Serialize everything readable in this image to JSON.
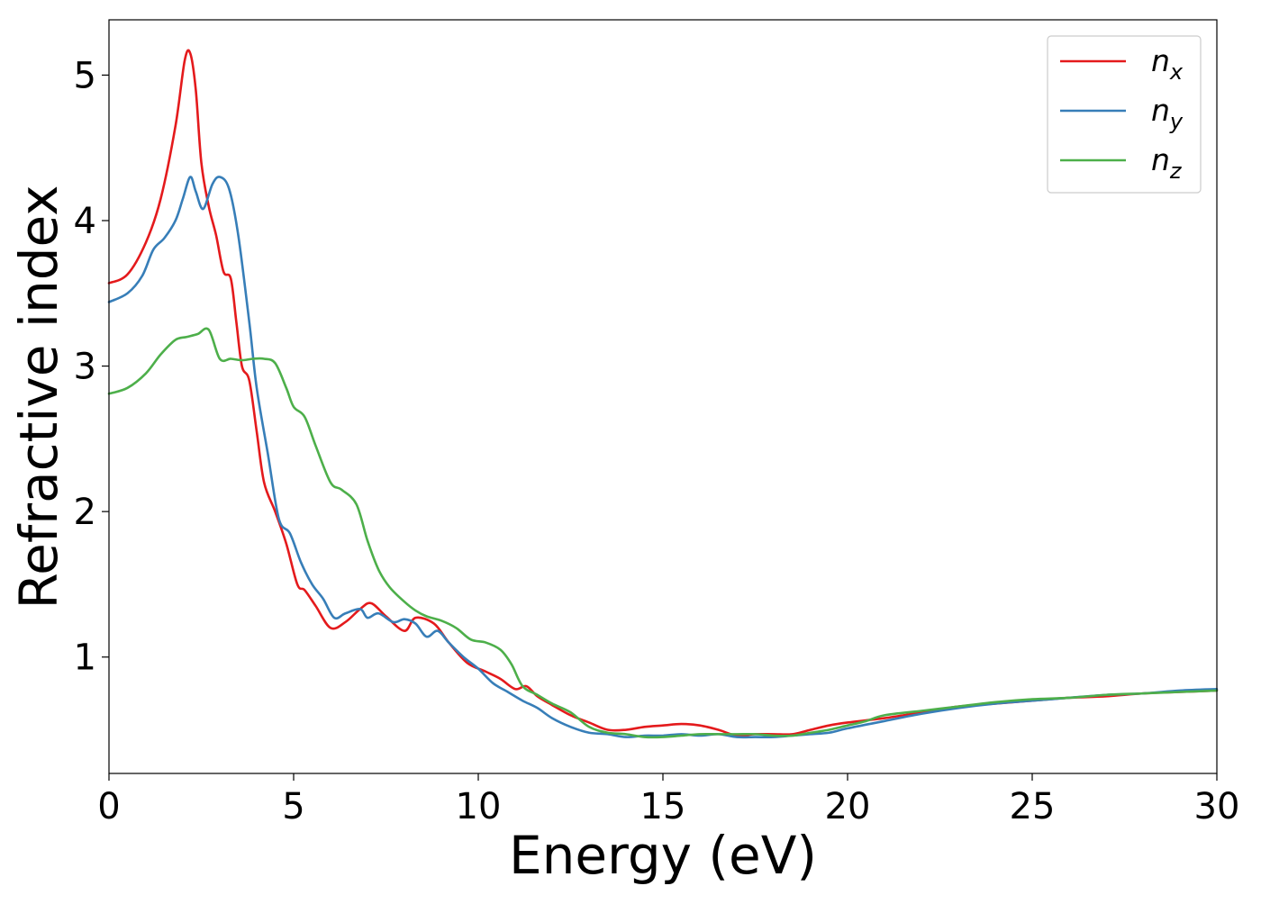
{
  "chart_data": {
    "type": "line",
    "xlabel": "Energy (eV)",
    "ylabel": "Refractive index",
    "xlim": [
      0,
      30
    ],
    "ylim": [
      0.2,
      5.38
    ],
    "xticks": [
      0,
      5,
      10,
      15,
      20,
      25,
      30
    ],
    "yticks": [
      1,
      2,
      3,
      4,
      5
    ],
    "grid": false,
    "legend_position": "top-right",
    "series": [
      {
        "name": "n",
        "subscript": "x",
        "color": "#e41a1c",
        "points": [
          [
            0,
            3.57
          ],
          [
            0.5,
            3.63
          ],
          [
            1.0,
            3.85
          ],
          [
            1.4,
            4.15
          ],
          [
            1.8,
            4.65
          ],
          [
            2.05,
            5.1
          ],
          [
            2.2,
            5.15
          ],
          [
            2.35,
            4.9
          ],
          [
            2.5,
            4.4
          ],
          [
            2.7,
            4.1
          ],
          [
            2.9,
            3.9
          ],
          [
            3.1,
            3.65
          ],
          [
            3.3,
            3.6
          ],
          [
            3.45,
            3.3
          ],
          [
            3.6,
            3.0
          ],
          [
            3.8,
            2.9
          ],
          [
            4.0,
            2.55
          ],
          [
            4.2,
            2.2
          ],
          [
            4.5,
            2.0
          ],
          [
            4.8,
            1.78
          ],
          [
            5.1,
            1.5
          ],
          [
            5.3,
            1.46
          ],
          [
            5.6,
            1.35
          ],
          [
            6.0,
            1.2
          ],
          [
            6.4,
            1.24
          ],
          [
            6.8,
            1.33
          ],
          [
            7.1,
            1.37
          ],
          [
            7.5,
            1.28
          ],
          [
            8.0,
            1.18
          ],
          [
            8.3,
            1.27
          ],
          [
            8.8,
            1.23
          ],
          [
            9.2,
            1.1
          ],
          [
            9.7,
            0.96
          ],
          [
            10.2,
            0.9
          ],
          [
            10.6,
            0.85
          ],
          [
            11.0,
            0.78
          ],
          [
            11.3,
            0.8
          ],
          [
            11.6,
            0.73
          ],
          [
            12.0,
            0.67
          ],
          [
            12.5,
            0.6
          ],
          [
            13.0,
            0.55
          ],
          [
            13.5,
            0.5
          ],
          [
            14.0,
            0.5
          ],
          [
            14.5,
            0.52
          ],
          [
            15.0,
            0.53
          ],
          [
            15.5,
            0.54
          ],
          [
            16.0,
            0.53
          ],
          [
            16.5,
            0.5
          ],
          [
            17.0,
            0.46
          ],
          [
            17.5,
            0.47
          ],
          [
            18.0,
            0.47
          ],
          [
            18.5,
            0.47
          ],
          [
            19.0,
            0.5
          ],
          [
            19.5,
            0.53
          ],
          [
            20.0,
            0.55
          ],
          [
            21.0,
            0.58
          ],
          [
            22.0,
            0.62
          ],
          [
            23.0,
            0.66
          ],
          [
            24.0,
            0.68
          ],
          [
            25.0,
            0.7
          ],
          [
            26.0,
            0.72
          ],
          [
            27.0,
            0.73
          ],
          [
            28.0,
            0.75
          ],
          [
            29.0,
            0.76
          ],
          [
            30.0,
            0.77
          ]
        ]
      },
      {
        "name": "n",
        "subscript": "y",
        "color": "#377eb8",
        "points": [
          [
            0,
            3.44
          ],
          [
            0.5,
            3.5
          ],
          [
            0.9,
            3.62
          ],
          [
            1.2,
            3.8
          ],
          [
            1.5,
            3.88
          ],
          [
            1.8,
            4.0
          ],
          [
            2.0,
            4.15
          ],
          [
            2.2,
            4.3
          ],
          [
            2.35,
            4.2
          ],
          [
            2.55,
            4.08
          ],
          [
            2.8,
            4.25
          ],
          [
            3.0,
            4.3
          ],
          [
            3.25,
            4.22
          ],
          [
            3.5,
            3.9
          ],
          [
            3.8,
            3.3
          ],
          [
            4.0,
            2.85
          ],
          [
            4.3,
            2.4
          ],
          [
            4.6,
            1.95
          ],
          [
            4.9,
            1.85
          ],
          [
            5.2,
            1.65
          ],
          [
            5.5,
            1.5
          ],
          [
            5.8,
            1.4
          ],
          [
            6.1,
            1.27
          ],
          [
            6.4,
            1.3
          ],
          [
            6.8,
            1.33
          ],
          [
            7.0,
            1.27
          ],
          [
            7.3,
            1.3
          ],
          [
            7.7,
            1.24
          ],
          [
            8.0,
            1.26
          ],
          [
            8.3,
            1.23
          ],
          [
            8.6,
            1.14
          ],
          [
            8.9,
            1.18
          ],
          [
            9.2,
            1.1
          ],
          [
            9.6,
            1.0
          ],
          [
            10.0,
            0.92
          ],
          [
            10.4,
            0.82
          ],
          [
            10.8,
            0.76
          ],
          [
            11.2,
            0.7
          ],
          [
            11.6,
            0.65
          ],
          [
            12.0,
            0.58
          ],
          [
            12.5,
            0.52
          ],
          [
            13.0,
            0.48
          ],
          [
            13.5,
            0.47
          ],
          [
            14.0,
            0.45
          ],
          [
            14.5,
            0.46
          ],
          [
            15.0,
            0.46
          ],
          [
            15.5,
            0.47
          ],
          [
            16.0,
            0.46
          ],
          [
            16.5,
            0.47
          ],
          [
            17.0,
            0.45
          ],
          [
            17.5,
            0.45
          ],
          [
            18.0,
            0.45
          ],
          [
            18.5,
            0.46
          ],
          [
            19.0,
            0.47
          ],
          [
            19.5,
            0.48
          ],
          [
            20.0,
            0.51
          ],
          [
            21.0,
            0.56
          ],
          [
            22.0,
            0.61
          ],
          [
            23.0,
            0.65
          ],
          [
            24.0,
            0.68
          ],
          [
            25.0,
            0.7
          ],
          [
            26.0,
            0.72
          ],
          [
            27.0,
            0.74
          ],
          [
            28.0,
            0.75
          ],
          [
            29.0,
            0.77
          ],
          [
            30.0,
            0.78
          ]
        ]
      },
      {
        "name": "n",
        "subscript": "z",
        "color": "#4daf4a",
        "points": [
          [
            0,
            2.81
          ],
          [
            0.5,
            2.85
          ],
          [
            1.0,
            2.95
          ],
          [
            1.4,
            3.08
          ],
          [
            1.8,
            3.18
          ],
          [
            2.1,
            3.2
          ],
          [
            2.4,
            3.22
          ],
          [
            2.7,
            3.25
          ],
          [
            3.0,
            3.05
          ],
          [
            3.3,
            3.05
          ],
          [
            3.6,
            3.04
          ],
          [
            3.9,
            3.05
          ],
          [
            4.2,
            3.05
          ],
          [
            4.5,
            3.02
          ],
          [
            4.8,
            2.85
          ],
          [
            5.0,
            2.72
          ],
          [
            5.3,
            2.65
          ],
          [
            5.6,
            2.45
          ],
          [
            6.0,
            2.2
          ],
          [
            6.3,
            2.15
          ],
          [
            6.7,
            2.05
          ],
          [
            7.0,
            1.8
          ],
          [
            7.3,
            1.6
          ],
          [
            7.6,
            1.48
          ],
          [
            8.0,
            1.38
          ],
          [
            8.3,
            1.32
          ],
          [
            8.6,
            1.28
          ],
          [
            9.0,
            1.25
          ],
          [
            9.4,
            1.2
          ],
          [
            9.8,
            1.12
          ],
          [
            10.2,
            1.1
          ],
          [
            10.6,
            1.05
          ],
          [
            10.9,
            0.95
          ],
          [
            11.2,
            0.8
          ],
          [
            11.6,
            0.74
          ],
          [
            12.0,
            0.68
          ],
          [
            12.5,
            0.62
          ],
          [
            13.0,
            0.52
          ],
          [
            13.5,
            0.48
          ],
          [
            14.0,
            0.47
          ],
          [
            14.5,
            0.45
          ],
          [
            15.0,
            0.45
          ],
          [
            15.5,
            0.46
          ],
          [
            16.0,
            0.47
          ],
          [
            16.5,
            0.47
          ],
          [
            17.0,
            0.47
          ],
          [
            17.5,
            0.47
          ],
          [
            18.0,
            0.46
          ],
          [
            18.5,
            0.46
          ],
          [
            19.0,
            0.48
          ],
          [
            19.5,
            0.5
          ],
          [
            20.0,
            0.53
          ],
          [
            20.5,
            0.56
          ],
          [
            21.0,
            0.6
          ],
          [
            22.0,
            0.63
          ],
          [
            23.0,
            0.66
          ],
          [
            24.0,
            0.69
          ],
          [
            25.0,
            0.71
          ],
          [
            26.0,
            0.72
          ],
          [
            27.0,
            0.74
          ],
          [
            28.0,
            0.75
          ],
          [
            29.0,
            0.76
          ],
          [
            30.0,
            0.77
          ]
        ]
      }
    ]
  }
}
